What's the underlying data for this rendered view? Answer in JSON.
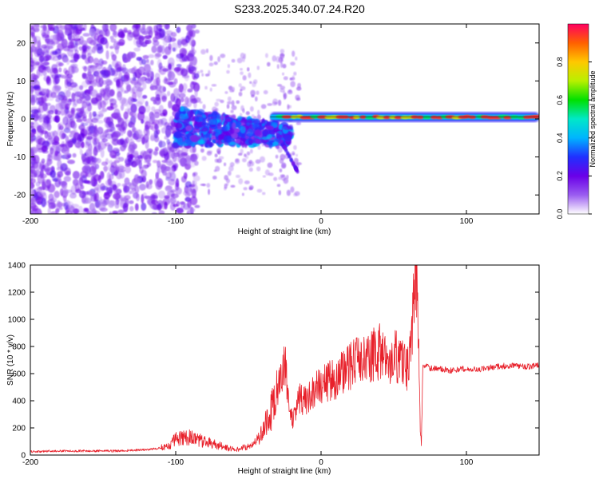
{
  "title": "S233.2025.340.07.24.R20",
  "chart_data": [
    {
      "type": "heatmap",
      "name": "spectrogram",
      "xlabel": "Height of straight line (km)",
      "ylabel": "Frequency (Hz)",
      "xlim": [
        -200,
        150
      ],
      "ylim": [
        -25,
        25
      ],
      "xticks": [
        -200,
        -100,
        0,
        100
      ],
      "yticks": [
        -20,
        -10,
        0,
        10,
        20
      ],
      "grid": false,
      "colorbar": {
        "label": "Normalized spectral amplitude",
        "range": [
          0,
          1
        ],
        "ticks": [
          "0.0",
          "0.2",
          "0.4",
          "0.6",
          "0.8"
        ],
        "colors": [
          "#ffffff",
          "#9a5cf0",
          "#6a00e8",
          "#2030ff",
          "#00b4ff",
          "#00e8c8",
          "#00e000",
          "#b8f000",
          "#ffc800",
          "#ff6000",
          "#ff0060"
        ]
      },
      "features": [
        {
          "description": "scattered low-amplitude noise",
          "x_range": [
            -200,
            -90
          ],
          "freq_range": [
            -25,
            25
          ],
          "level": 0.2
        },
        {
          "description": "turbulent band",
          "x_range": [
            -100,
            -20
          ],
          "freq_range": [
            -12,
            8
          ],
          "level": 0.35
        },
        {
          "description": "steady tone near 0 Hz",
          "x_range": [
            -35,
            150
          ],
          "freq": 0.5,
          "level": 0.95
        }
      ]
    },
    {
      "type": "line",
      "name": "snr",
      "xlabel": "Height of straight line (km)",
      "ylabel": "SNR (10 * v/v)",
      "xlim": [
        -200,
        150
      ],
      "ylim": [
        0,
        1400
      ],
      "xticks": [
        -200,
        -100,
        0,
        100
      ],
      "yticks": [
        0,
        200,
        400,
        600,
        800,
        1000,
        1200,
        1400
      ],
      "color": "#e8202a",
      "series": [
        {
          "name": "SNR",
          "x": [
            -200,
            -180,
            -160,
            -140,
            -120,
            -105,
            -100,
            -90,
            -80,
            -70,
            -60,
            -50,
            -45,
            -40,
            -35,
            -30,
            -25,
            -22,
            -20,
            -15,
            -10,
            -5,
            0,
            5,
            10,
            15,
            20,
            25,
            30,
            35,
            40,
            45,
            50,
            55,
            60,
            63,
            65,
            67,
            68,
            69,
            70,
            72,
            75,
            80,
            90,
            100,
            110,
            120,
            130,
            140,
            150
          ],
          "y": [
            25,
            30,
            30,
            30,
            40,
            60,
            120,
            130,
            100,
            70,
            40,
            60,
            100,
            180,
            300,
            450,
            700,
            400,
            250,
            420,
            400,
            470,
            520,
            540,
            560,
            620,
            650,
            680,
            700,
            740,
            760,
            720,
            740,
            700,
            650,
            1000,
            1400,
            900,
            300,
            60,
            640,
            660,
            640,
            640,
            620,
            640,
            630,
            650,
            660,
            650,
            660
          ]
        }
      ]
    }
  ]
}
